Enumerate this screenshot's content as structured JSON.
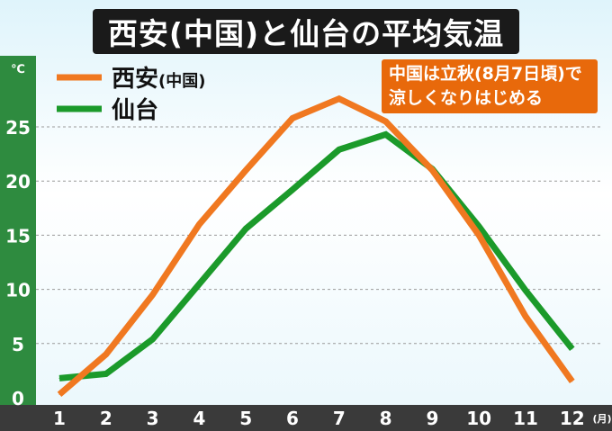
{
  "title": "西安(中国)と仙台の平均気温",
  "note": {
    "line1": "中国は立秋(8月7日頃)で",
    "line2": "涼しくなりはじめる"
  },
  "colors": {
    "xian": "#f07820",
    "sendai": "#1b9a2a",
    "axis_band": "#2e8b3f",
    "x_band": "#3a3a3a",
    "note_bg": "#e8690b"
  },
  "chart_data": {
    "type": "line",
    "y_unit": "℃",
    "x_unit": "(月)",
    "categories": [
      "1",
      "2",
      "3",
      "4",
      "5",
      "6",
      "7",
      "8",
      "9",
      "10",
      "11",
      "12"
    ],
    "y_ticks": [
      "0",
      "5",
      "10",
      "15",
      "20",
      "25"
    ],
    "ylim": [
      0,
      27.5
    ],
    "grid": true,
    "legend_position": "top-left",
    "series": [
      {
        "name": "西安",
        "name_suffix": "(中国)",
        "color": "#f07820",
        "values": [
          0.3,
          4.0,
          9.5,
          16.0,
          21.0,
          25.8,
          27.6,
          25.5,
          21.0,
          15.0,
          7.5,
          1.5
        ]
      },
      {
        "name": "仙台",
        "name_suffix": "",
        "color": "#1b9a2a",
        "values": [
          1.8,
          2.2,
          5.4,
          10.5,
          15.6,
          19.2,
          22.9,
          24.3,
          21.1,
          15.8,
          9.9,
          4.5
        ]
      }
    ]
  }
}
